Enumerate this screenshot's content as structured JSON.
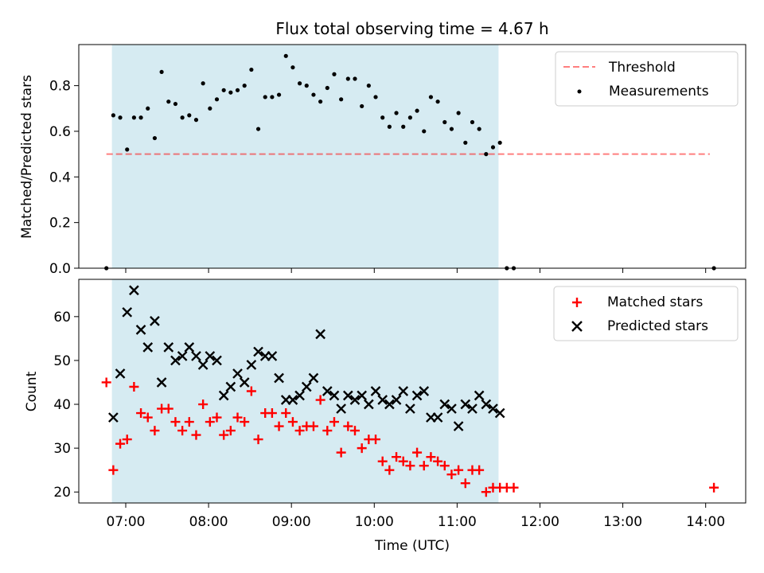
{
  "figure": {
    "title": "Flux total observing time = 4.67 h",
    "colors": {
      "night_band": "#add8e6",
      "threshold": "#ff0000",
      "measurement": "#000000",
      "matched": "#ff0000",
      "predicted": "#000000"
    }
  },
  "chart_data": [
    {
      "type": "scatter",
      "panel": "top",
      "ylabel": "Matched/Predicted stars",
      "xlim": [
        "06:26",
        "14:29"
      ],
      "ylim": [
        0,
        0.98
      ],
      "yticks": [
        0.0,
        0.2,
        0.4,
        0.6,
        0.8
      ],
      "ytick_labels": [
        "0.0",
        "0.2",
        "0.4",
        "0.6",
        "0.8"
      ],
      "shaded_span": [
        "06:50",
        "11:30"
      ],
      "legend_position": "upper right",
      "threshold": {
        "name": "Threshold",
        "y": 0.5,
        "x_range": [
          "06:46",
          "14:03"
        ]
      },
      "series": [
        {
          "name": "Measurements",
          "x": [
            "06:46",
            "06:51",
            "06:56",
            "07:01",
            "07:06",
            "07:11",
            "07:16",
            "07:21",
            "07:26",
            "07:31",
            "07:36",
            "07:41",
            "07:46",
            "07:51",
            "07:56",
            "08:01",
            "08:06",
            "08:11",
            "08:16",
            "08:21",
            "08:26",
            "08:31",
            "08:36",
            "08:41",
            "08:46",
            "08:51",
            "08:56",
            "09:01",
            "09:06",
            "09:11",
            "09:16",
            "09:21",
            "09:26",
            "09:31",
            "09:36",
            "09:41",
            "09:46",
            "09:51",
            "09:56",
            "10:01",
            "10:06",
            "10:11",
            "10:16",
            "10:21",
            "10:26",
            "10:31",
            "10:36",
            "10:41",
            "10:46",
            "10:51",
            "10:56",
            "11:01",
            "11:06",
            "11:11",
            "11:16",
            "11:21",
            "11:26",
            "11:31",
            "11:36",
            "11:41",
            "14:06"
          ],
          "y": [
            0.0,
            0.67,
            0.66,
            0.52,
            0.66,
            0.66,
            0.7,
            0.57,
            0.86,
            0.73,
            0.72,
            0.66,
            0.67,
            0.65,
            0.81,
            0.7,
            0.74,
            0.78,
            0.77,
            0.78,
            0.8,
            0.87,
            0.61,
            0.75,
            0.75,
            0.76,
            0.93,
            0.88,
            0.81,
            0.8,
            0.76,
            0.73,
            0.79,
            0.85,
            0.74,
            0.83,
            0.83,
            0.71,
            0.8,
            0.75,
            0.66,
            0.62,
            0.68,
            0.62,
            0.66,
            0.69,
            0.6,
            0.75,
            0.73,
            0.64,
            0.61,
            0.68,
            0.55,
            0.64,
            0.61,
            0.5,
            0.53,
            0.55,
            0.0,
            0.0,
            0.0
          ]
        }
      ]
    },
    {
      "type": "scatter",
      "panel": "bottom",
      "xlabel": "Time (UTC)",
      "ylabel": "Count",
      "xlim": [
        "06:26",
        "14:29"
      ],
      "ylim": [
        17.5,
        68.5
      ],
      "yticks": [
        20,
        30,
        40,
        50,
        60
      ],
      "ytick_labels": [
        "20",
        "30",
        "40",
        "50",
        "60"
      ],
      "xticks": [
        "07:00",
        "08:00",
        "09:00",
        "10:00",
        "11:00",
        "12:00",
        "13:00",
        "14:00"
      ],
      "xtick_labels": [
        "07:00",
        "08:00",
        "09:00",
        "10:00",
        "11:00",
        "12:00",
        "13:00",
        "14:00"
      ],
      "shaded_span": [
        "06:50",
        "11:30"
      ],
      "legend_position": "upper right",
      "series": [
        {
          "name": "Matched stars",
          "marker": "plus",
          "x": [
            "06:46",
            "06:51",
            "06:56",
            "07:01",
            "07:06",
            "07:11",
            "07:16",
            "07:21",
            "07:26",
            "07:31",
            "07:36",
            "07:41",
            "07:46",
            "07:51",
            "07:56",
            "08:01",
            "08:06",
            "08:11",
            "08:16",
            "08:21",
            "08:26",
            "08:31",
            "08:36",
            "08:41",
            "08:46",
            "08:51",
            "08:56",
            "09:01",
            "09:06",
            "09:11",
            "09:16",
            "09:21",
            "09:26",
            "09:31",
            "09:36",
            "09:41",
            "09:46",
            "09:51",
            "09:56",
            "10:01",
            "10:06",
            "10:11",
            "10:16",
            "10:21",
            "10:26",
            "10:31",
            "10:36",
            "10:41",
            "10:46",
            "10:51",
            "10:56",
            "11:01",
            "11:06",
            "11:11",
            "11:16",
            "11:21",
            "11:26",
            "11:31",
            "11:36",
            "11:41",
            "14:06"
          ],
          "y": [
            45,
            25,
            31,
            32,
            44,
            38,
            37,
            34,
            39,
            39,
            36,
            34,
            36,
            33,
            40,
            36,
            37,
            33,
            34,
            37,
            36,
            43,
            32,
            38,
            38,
            35,
            38,
            36,
            34,
            35,
            35,
            41,
            34,
            36,
            29,
            35,
            34,
            30,
            32,
            32,
            27,
            25,
            28,
            27,
            26,
            29,
            26,
            28,
            27,
            26,
            24,
            25,
            22,
            25,
            25,
            20,
            21,
            21,
            21,
            21,
            21
          ]
        },
        {
          "name": "Predicted stars",
          "marker": "x",
          "x": [
            "06:51",
            "06:56",
            "07:01",
            "07:06",
            "07:11",
            "07:16",
            "07:21",
            "07:26",
            "07:31",
            "07:36",
            "07:41",
            "07:46",
            "07:51",
            "07:56",
            "08:01",
            "08:06",
            "08:11",
            "08:16",
            "08:21",
            "08:26",
            "08:31",
            "08:36",
            "08:41",
            "08:46",
            "08:51",
            "08:56",
            "09:01",
            "09:06",
            "09:11",
            "09:16",
            "09:21",
            "09:26",
            "09:31",
            "09:36",
            "09:41",
            "09:46",
            "09:51",
            "09:56",
            "10:01",
            "10:06",
            "10:11",
            "10:16",
            "10:21",
            "10:26",
            "10:31",
            "10:36",
            "10:41",
            "10:46",
            "10:51",
            "10:56",
            "11:01",
            "11:06",
            "11:11",
            "11:16",
            "11:21",
            "11:26",
            "11:31"
          ],
          "y": [
            37,
            47,
            61,
            66,
            57,
            53,
            59,
            45,
            53,
            50,
            51,
            53,
            51,
            49,
            51,
            50,
            42,
            44,
            47,
            45,
            49,
            52,
            51,
            51,
            46,
            41,
            41,
            42,
            44,
            46,
            56,
            43,
            42,
            39,
            42,
            41,
            42,
            40,
            43,
            41,
            40,
            41,
            43,
            39,
            42,
            43,
            37,
            37,
            40,
            39,
            35,
            40,
            39,
            42,
            40,
            39,
            38
          ]
        }
      ]
    }
  ]
}
